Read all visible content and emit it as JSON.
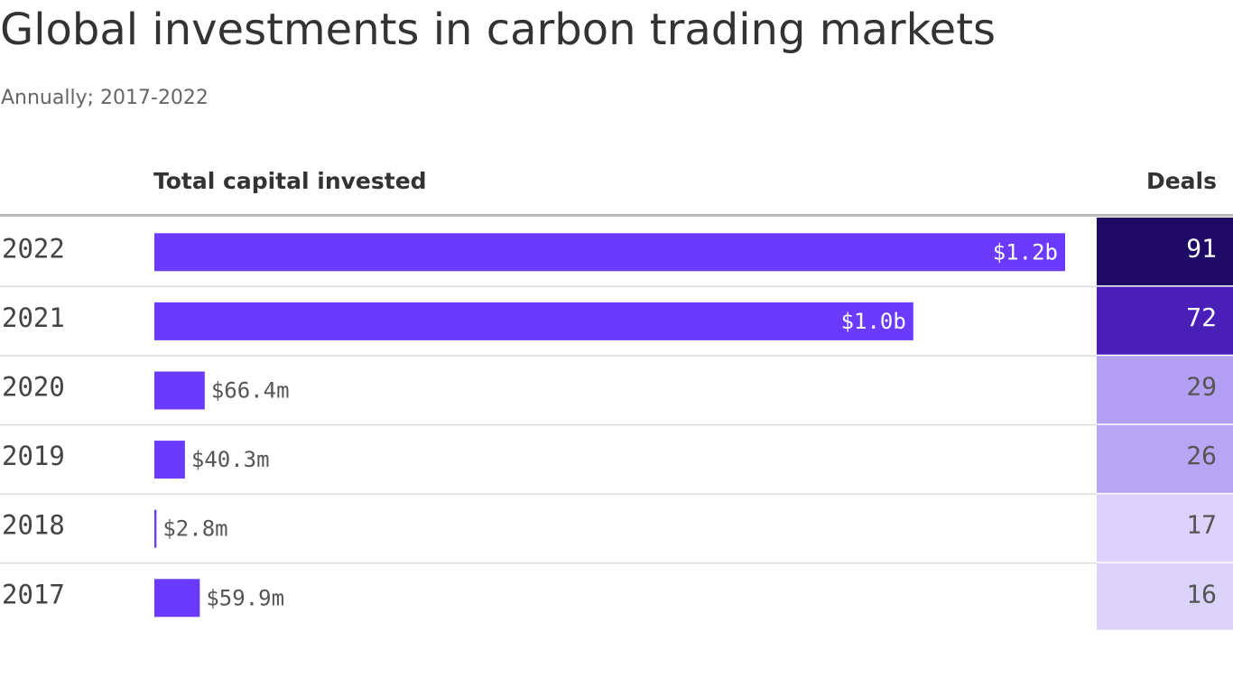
{
  "chart_data": {
    "type": "bar",
    "title": "Global investments in carbon trading markets",
    "subtitle": "Annually; 2017-2022",
    "categories": [
      "2022",
      "2021",
      "2020",
      "2019",
      "2018",
      "2017"
    ],
    "series": [
      {
        "name": "Total capital invested",
        "color": "#6a3bff",
        "values": [
          1200000000,
          1000000000,
          66400000,
          40300000,
          2800000,
          59900000
        ],
        "value_labels": [
          "$1.2b",
          "$1.0b",
          "$66.4m",
          "$40.3m",
          "$2.8m",
          "$59.9m"
        ]
      }
    ],
    "deals": {
      "name": "Deals",
      "values": [
        91,
        72,
        29,
        26,
        17,
        16
      ],
      "colors": [
        "#1f0a66",
        "#4a1fb8",
        "#b3a0f5",
        "#b7a6f3",
        "#dcd2fb",
        "#dcd3fb"
      ]
    }
  }
}
